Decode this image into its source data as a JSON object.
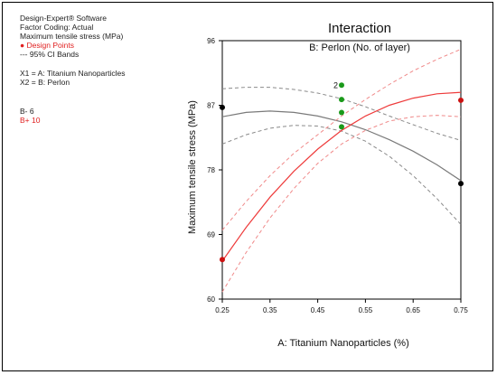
{
  "info": {
    "software": "Design-Expert® Software",
    "factor_coding": "Factor Coding: Actual",
    "response": "Maximum tensile stress (MPa)",
    "design_points": "Design Points",
    "ci_bands": "95% CI Bands",
    "x1": "X1 = A: Titanium Nanoparticles",
    "x2": "X2 = B: Perlon",
    "b_minus": "B- 6",
    "b_plus": "B+ 10"
  },
  "colors": {
    "b_minus": "#7a7a7a",
    "b_plus": "#ee3b3b",
    "ci_minus": "#8a8a8a",
    "ci_plus": "#f08a8a",
    "point_black": "#000000",
    "point_red": "#cc1111",
    "point_green": "#1a9a1a"
  },
  "chart_data": {
    "type": "line",
    "title": "Interaction",
    "subtitle": "B: Perlon (No. of layer)",
    "xlabel": "A: Titanium Nanoparticles (%)",
    "ylabel": "Maximum tensile stress (MPa)",
    "xlim": [
      0.25,
      0.75
    ],
    "ylim": [
      60,
      96
    ],
    "x_ticks": [
      "0.25",
      "0.35",
      "0.45",
      "0.55",
      "0.65",
      "0.75"
    ],
    "y_ticks": [
      "60",
      "69",
      "78",
      "87",
      "96"
    ],
    "x_tick_values": [
      0.25,
      0.35,
      0.45,
      0.55,
      0.65,
      0.75
    ],
    "y_tick_values": [
      60,
      69,
      78,
      87,
      96
    ],
    "series": [
      {
        "name": "B- 6",
        "x": [
          0.25,
          0.3,
          0.35,
          0.4,
          0.45,
          0.5,
          0.55,
          0.6,
          0.65,
          0.7,
          0.75
        ],
        "y": [
          85.4,
          86.0,
          86.2,
          86.0,
          85.5,
          84.7,
          83.6,
          82.2,
          80.6,
          78.7,
          76.5
        ],
        "lower": [
          81.6,
          82.9,
          83.8,
          84.2,
          84.1,
          83.4,
          82.0,
          79.9,
          77.2,
          74.0,
          70.4
        ],
        "upper": [
          89.3,
          89.5,
          89.5,
          89.2,
          88.7,
          87.9,
          86.8,
          85.5,
          84.3,
          83.1,
          82.1
        ]
      },
      {
        "name": "B+ 10",
        "x": [
          0.25,
          0.3,
          0.35,
          0.4,
          0.45,
          0.5,
          0.55,
          0.6,
          0.65,
          0.7,
          0.75
        ],
        "y": [
          65.3,
          70.0,
          74.2,
          77.8,
          80.9,
          83.5,
          85.5,
          87.0,
          88.0,
          88.6,
          88.8
        ],
        "lower": [
          61.0,
          66.5,
          71.3,
          75.4,
          78.9,
          81.6,
          83.5,
          84.8,
          85.4,
          85.6,
          85.4
        ],
        "upper": [
          69.6,
          73.6,
          77.2,
          80.3,
          82.9,
          85.5,
          87.8,
          89.9,
          91.8,
          93.4,
          94.8
        ]
      }
    ],
    "points": [
      {
        "x": 0.25,
        "y": 86.7,
        "group": "black"
      },
      {
        "x": 0.25,
        "y": 65.5,
        "group": "red"
      },
      {
        "x": 0.75,
        "y": 76.1,
        "group": "black"
      },
      {
        "x": 0.75,
        "y": 87.7,
        "group": "red"
      },
      {
        "x": 0.5,
        "y": 89.8,
        "group": "green",
        "label": "2"
      },
      {
        "x": 0.5,
        "y": 87.8,
        "group": "green"
      },
      {
        "x": 0.5,
        "y": 86.0,
        "group": "green"
      },
      {
        "x": 0.5,
        "y": 84.0,
        "group": "green"
      }
    ]
  }
}
